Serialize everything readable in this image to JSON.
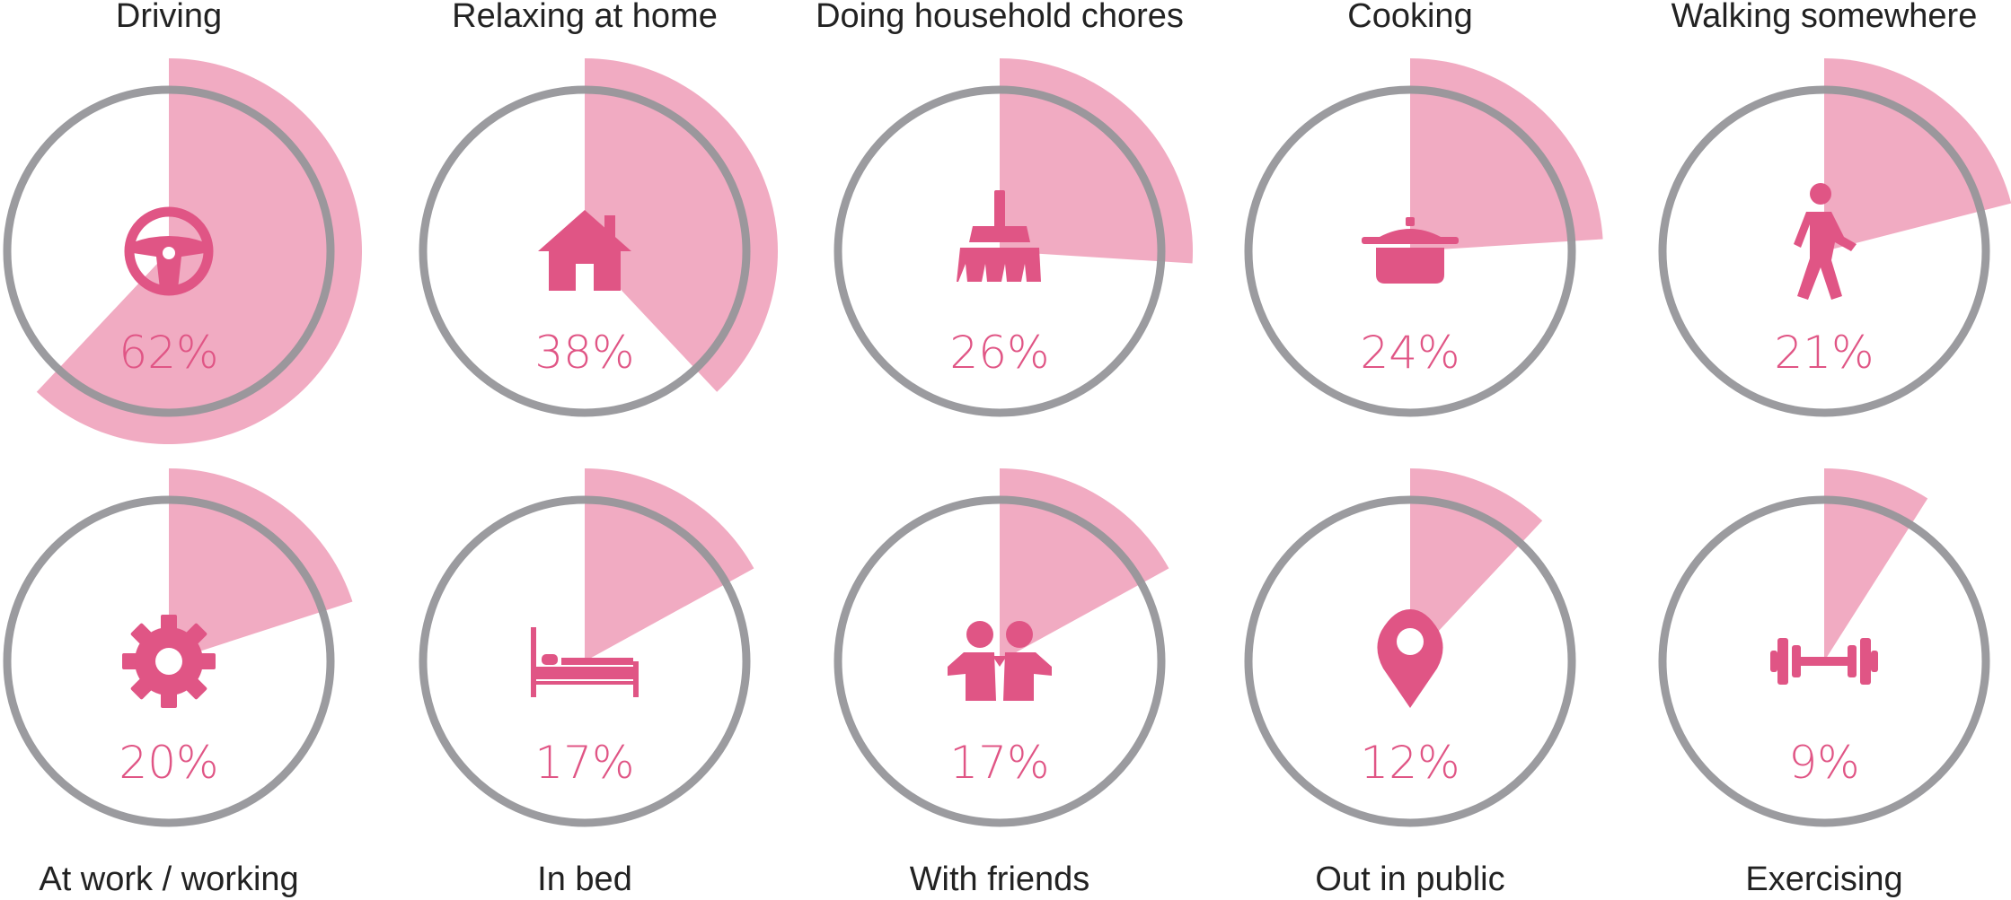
{
  "colors": {
    "accent": "#e05585",
    "wedge": "#f0a6bf",
    "ring": "#96969a",
    "text": "#222222"
  },
  "chart_data": {
    "type": "radial-wedge",
    "unit": "%",
    "items": [
      {
        "label": "Driving",
        "value": 62,
        "value_label": "62%",
        "icon": "steering-wheel-icon"
      },
      {
        "label": "Relaxing at home",
        "value": 38,
        "value_label": "38%",
        "icon": "house-icon"
      },
      {
        "label": "Doing household chores",
        "value": 26,
        "value_label": "26%",
        "icon": "broom-icon"
      },
      {
        "label": "Cooking",
        "value": 24,
        "value_label": "24%",
        "icon": "cooking-pot-icon"
      },
      {
        "label": "Walking somewhere",
        "value": 21,
        "value_label": "21%",
        "icon": "walking-person-icon"
      },
      {
        "label": "At work / working",
        "value": 20,
        "value_label": "20%",
        "icon": "gear-icon"
      },
      {
        "label": "In bed",
        "value": 17,
        "value_label": "17%",
        "icon": "bed-icon"
      },
      {
        "label": "With friends",
        "value": 17,
        "value_label": "17%",
        "icon": "friends-icon"
      },
      {
        "label": "Out in public",
        "value": 12,
        "value_label": "12%",
        "icon": "map-pin-icon"
      },
      {
        "label": "Exercising",
        "value": 9,
        "value_label": "9%",
        "icon": "dumbbell-icon"
      }
    ]
  }
}
